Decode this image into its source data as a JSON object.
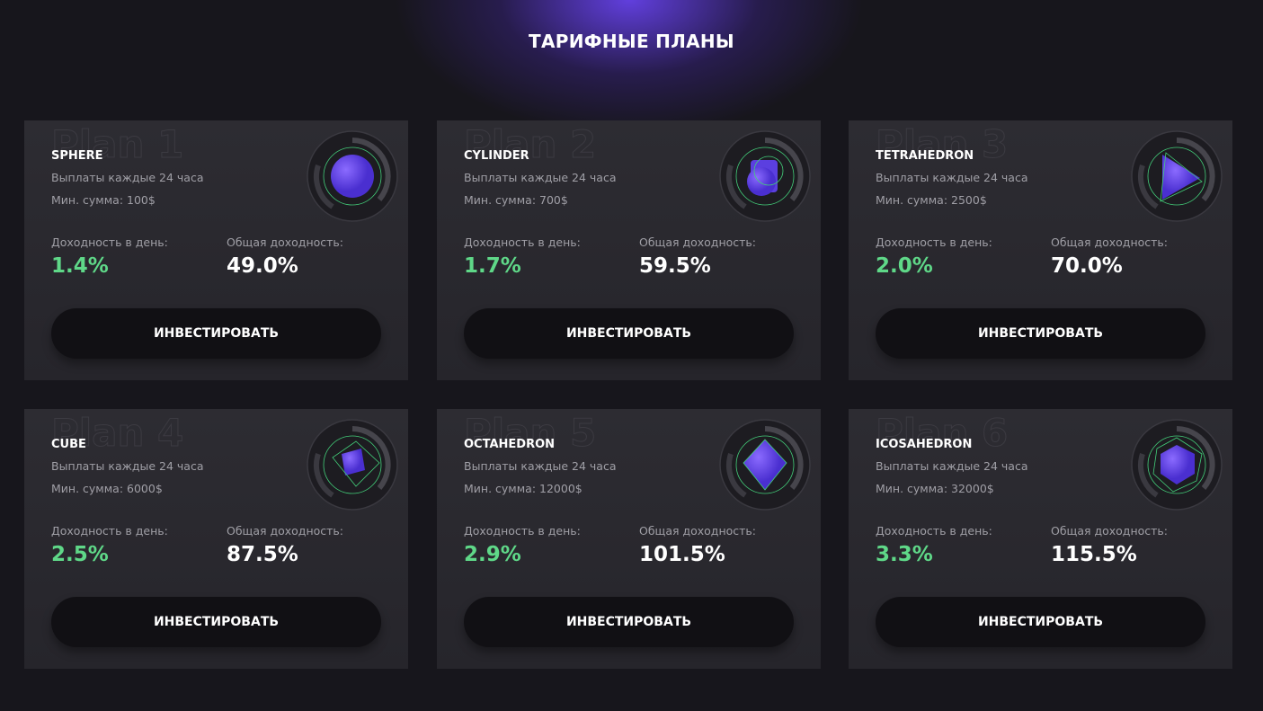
{
  "header": {
    "title": "ТАРИФНЫЕ ПЛАНЫ"
  },
  "plans": [
    {
      "watermark": "Plan 1",
      "name": "SPHERE",
      "payout": "Выплаты каждые 24 часа",
      "min_sum": "Мин. сумма: 100$",
      "daily_label": "Доходность в день:",
      "daily_value": "1.4%",
      "total_label": "Общая доходность:",
      "total_value": "49.0%",
      "button": "ИНВЕСТИРОВАТЬ"
    },
    {
      "watermark": "Plan 2",
      "name": "CYLINDER",
      "payout": "Выплаты каждые 24 часа",
      "min_sum": "Мин. сумма: 700$",
      "daily_label": "Доходность в день:",
      "daily_value": "1.7%",
      "total_label": "Общая доходность:",
      "total_value": "59.5%",
      "button": "ИНВЕСТИРОВАТЬ"
    },
    {
      "watermark": "Plan 3",
      "name": "TETRAHEDRON",
      "payout": "Выплаты каждые 24 часа",
      "min_sum": "Мин. сумма: 2500$",
      "daily_label": "Доходность в день:",
      "daily_value": "2.0%",
      "total_label": "Общая доходность:",
      "total_value": "70.0%",
      "button": "ИНВЕСТИРОВАТЬ"
    },
    {
      "watermark": "Plan 4",
      "name": "CUBE",
      "payout": "Выплаты каждые 24 часа",
      "min_sum": "Мин. сумма: 6000$",
      "daily_label": "Доходность в день:",
      "daily_value": "2.5%",
      "total_label": "Общая доходность:",
      "total_value": "87.5%",
      "button": "ИНВЕСТИРОВАТЬ"
    },
    {
      "watermark": "Plan 5",
      "name": "OCTAHEDRON",
      "payout": "Выплаты каждые 24 часа",
      "min_sum": "Мин. сумма: 12000$",
      "daily_label": "Доходность в день:",
      "daily_value": "2.9%",
      "total_label": "Общая доходность:",
      "total_value": "101.5%",
      "button": "ИНВЕСТИРОВАТЬ"
    },
    {
      "watermark": "Plan 6",
      "name": "ICOSAHEDRON",
      "payout": "Выплаты каждые 24 часа",
      "min_sum": "Мин. сумма: 32000$",
      "daily_label": "Доходность в день:",
      "daily_value": "3.3%",
      "total_label": "Общая доходность:",
      "total_value": "115.5%",
      "button": "ИНВЕСТИРОВАТЬ"
    }
  ]
}
